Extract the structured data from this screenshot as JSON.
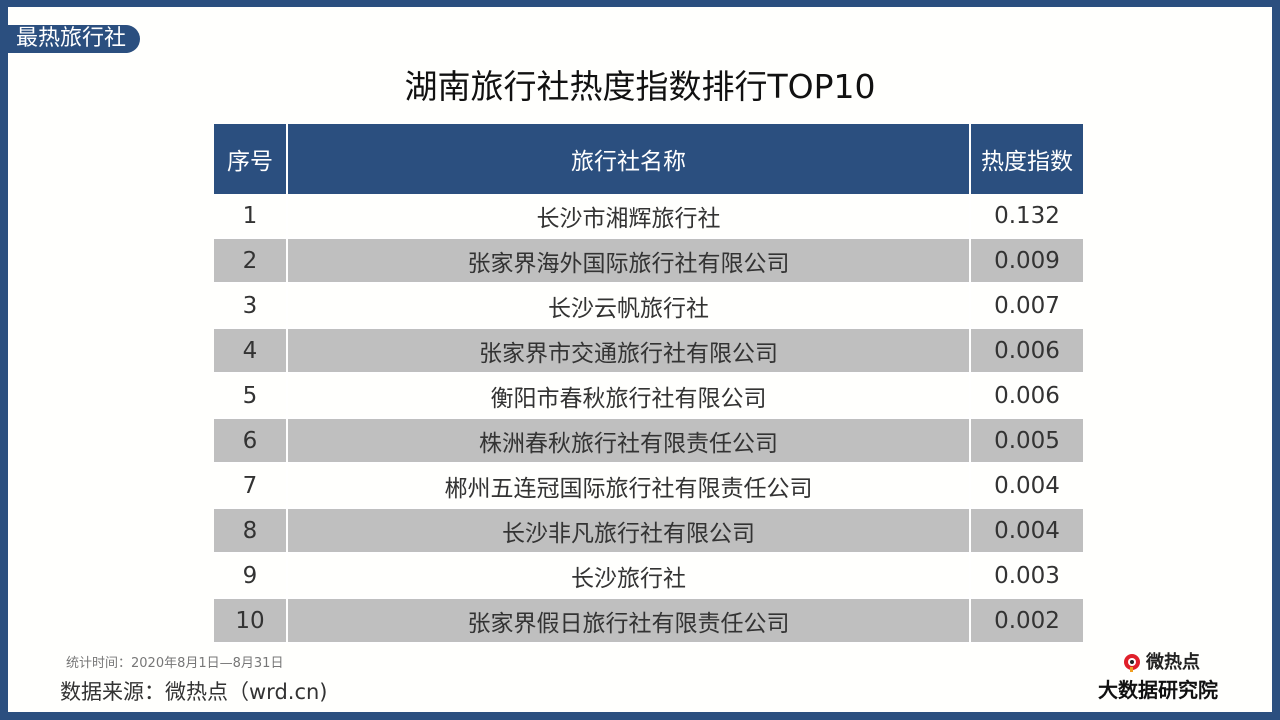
{
  "tag": "最热旅行社",
  "title": "湖南旅行社热度指数排行TOP10",
  "table": {
    "headers": [
      "序号",
      "旅行社名称",
      "热度指数"
    ],
    "rows": [
      [
        "1",
        "长沙市湘辉旅行社",
        "0.132"
      ],
      [
        "2",
        "张家界海外国际旅行社有限公司",
        "0.009"
      ],
      [
        "3",
        "长沙云帆旅行社",
        "0.007"
      ],
      [
        "4",
        "张家界市交通旅行社有限公司",
        "0.006"
      ],
      [
        "5",
        "衡阳市春秋旅行社有限公司",
        "0.006"
      ],
      [
        "6",
        "株洲春秋旅行社有限责任公司",
        "0.005"
      ],
      [
        "7",
        "郴州五连冠国际旅行社有限责任公司",
        "0.004"
      ],
      [
        "8",
        "长沙非凡旅行社有限公司",
        "0.004"
      ],
      [
        "9",
        "长沙旅行社",
        "0.003"
      ],
      [
        "10",
        "张家界假日旅行社有限责任公司",
        "0.002"
      ]
    ]
  },
  "footer": {
    "period": "统计时间：2020年8月1日—8月31日",
    "source": "数据来源：微热点（wrd.cn)"
  },
  "logo": {
    "line1": "微热点",
    "line2": "大数据研究院",
    "icon": "weibo-eye-icon"
  },
  "colors": {
    "brand": "#2b4f7f",
    "alt_row": "#bfbfbf",
    "logo_red": "#e0202a"
  }
}
